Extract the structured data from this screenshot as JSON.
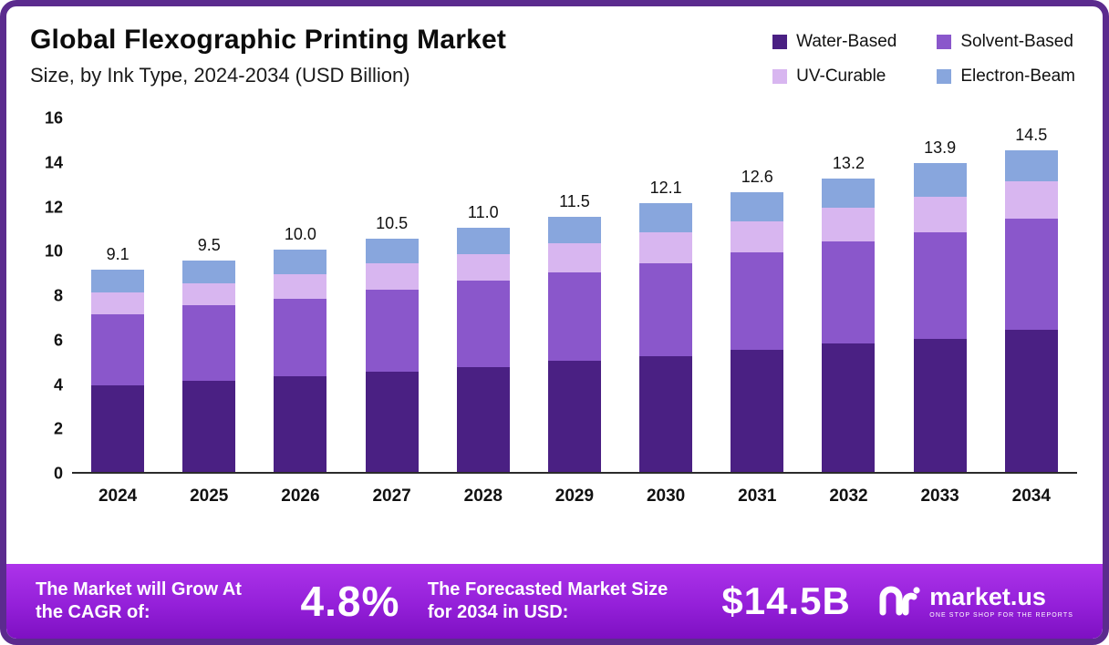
{
  "header": {
    "title": "Global Flexographic Printing Market",
    "subtitle": "Size, by Ink Type, 2024-2034 (USD Billion)"
  },
  "legend": [
    {
      "label": "Water-Based",
      "color": "#4a2083"
    },
    {
      "label": "Solvent-Based",
      "color": "#8a57cb"
    },
    {
      "label": "UV-Curable",
      "color": "#d8b6f0"
    },
    {
      "label": "Electron-Beam",
      "color": "#88a6dd"
    }
  ],
  "chart_data": {
    "type": "bar",
    "stacked": true,
    "title": "Global Flexographic Printing Market Size, by Ink Type, 2024-2034 (USD Billion)",
    "categories": [
      "2024",
      "2025",
      "2026",
      "2027",
      "2028",
      "2029",
      "2030",
      "2031",
      "2032",
      "2033",
      "2034"
    ],
    "series": [
      {
        "name": "Water-Based",
        "color": "#4a2083",
        "values": [
          3.9,
          4.1,
          4.3,
          4.5,
          4.7,
          5.0,
          5.2,
          5.5,
          5.8,
          6.0,
          6.4
        ]
      },
      {
        "name": "Solvent-Based",
        "color": "#8a57cb",
        "values": [
          3.2,
          3.4,
          3.5,
          3.7,
          3.9,
          4.0,
          4.2,
          4.4,
          4.6,
          4.8,
          5.0
        ]
      },
      {
        "name": "UV-Curable",
        "color": "#d8b6f0",
        "values": [
          1.0,
          1.0,
          1.1,
          1.2,
          1.2,
          1.3,
          1.4,
          1.4,
          1.5,
          1.6,
          1.7
        ]
      },
      {
        "name": "Electron-Beam",
        "color": "#88a6dd",
        "values": [
          1.0,
          1.0,
          1.1,
          1.1,
          1.2,
          1.2,
          1.3,
          1.3,
          1.3,
          1.5,
          1.4
        ]
      }
    ],
    "totals": [
      9.1,
      9.5,
      10.0,
      10.5,
      11.0,
      11.5,
      12.1,
      12.6,
      13.2,
      13.9,
      14.5
    ],
    "xlabel": "",
    "ylabel": "",
    "ylim": [
      0,
      16
    ],
    "yticks": [
      0,
      2,
      4,
      6,
      8,
      10,
      12,
      14,
      16
    ],
    "grid": false,
    "legend_position": "top-right"
  },
  "banner": {
    "cagr_label": "The Market will Grow At the CAGR of:",
    "cagr_value": "4.8%",
    "forecast_label": "The Forecasted Market Size for 2034 in USD:",
    "forecast_value": "$14.5B",
    "brand": "market.us",
    "brand_tagline": "ONE STOP SHOP FOR THE REPORTS"
  },
  "colors": {
    "frame": "#5b2b8e",
    "banner_start": "#ad33ea",
    "banner_end": "#7e10c2"
  }
}
